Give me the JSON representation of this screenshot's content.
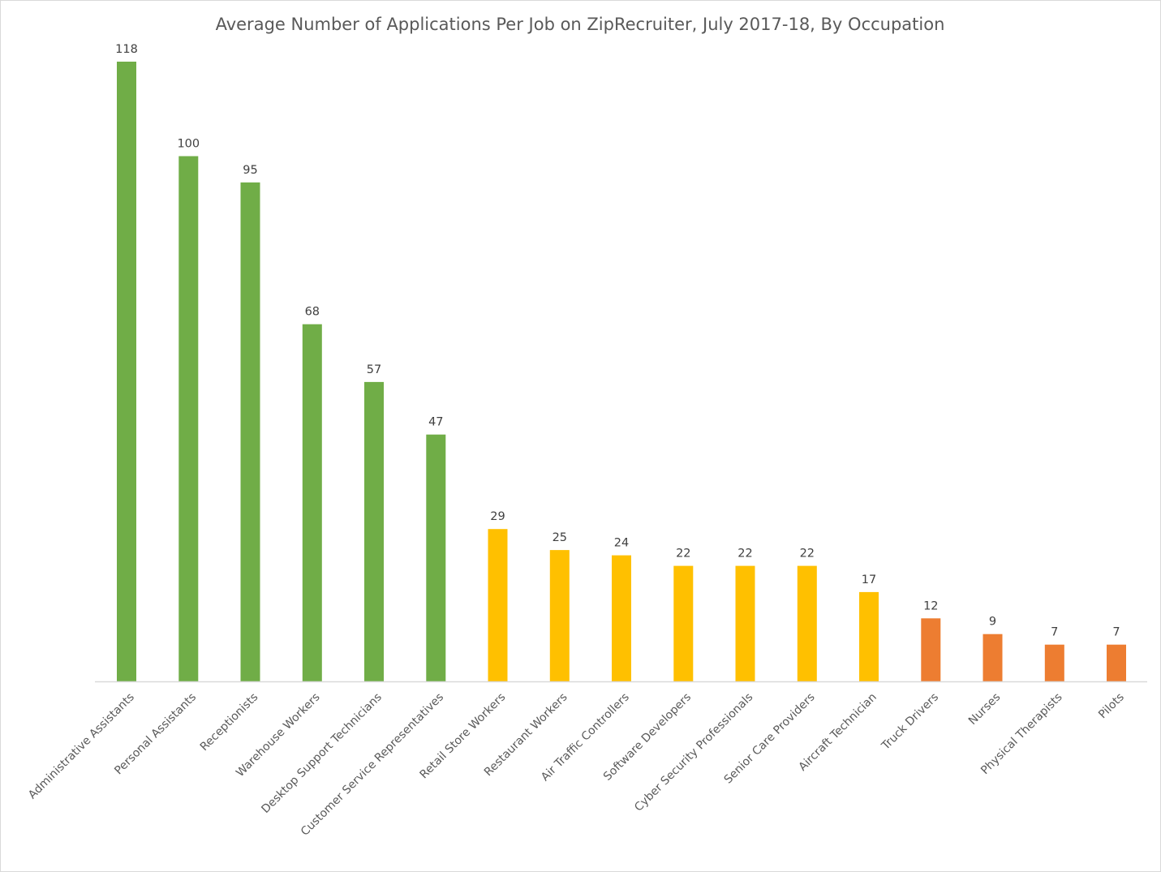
{
  "chart_data": {
    "type": "bar",
    "title": "Average Number of Applications Per Job on ZipRecruiter, July 2017-18, By Occupation",
    "xlabel": "",
    "ylabel": "",
    "ylim": [
      0,
      118
    ],
    "grid": false,
    "legend": "none",
    "categories": [
      "Administrative Assistants",
      "Personal Assistants",
      "Receptionists",
      "Warehouse Workers",
      "Desktop Support Technicians",
      "Customer Service Representatives",
      "Retail Store Workers",
      "Restaurant Workers",
      "Air Traffic Controllers",
      "Software Developers",
      "Cyber Security Professionals",
      "Senior Care Providers",
      "Aircraft Technician",
      "Truck Drivers",
      "Nurses",
      "Physical Therapists",
      "Pilots"
    ],
    "values": [
      118,
      100,
      95,
      68,
      57,
      47,
      29,
      25,
      24,
      22,
      22,
      22,
      17,
      12,
      9,
      7,
      7
    ],
    "data_labels": [
      "118",
      "100",
      "95",
      "68",
      "57",
      "47",
      "29",
      "25",
      "24",
      "22",
      "22",
      "22",
      "17",
      "12",
      "9",
      "7",
      "7"
    ],
    "bar_colors": [
      "#70ad47",
      "#70ad47",
      "#70ad47",
      "#70ad47",
      "#70ad47",
      "#70ad47",
      "#ffc000",
      "#ffc000",
      "#ffc000",
      "#ffc000",
      "#ffc000",
      "#ffc000",
      "#ffc000",
      "#ed7d31",
      "#ed7d31",
      "#ed7d31",
      "#ed7d31"
    ]
  },
  "colors": {
    "axis": "#d9d9d9",
    "high": "#70ad47",
    "medium": "#ffc000",
    "low": "#ed7d31"
  }
}
